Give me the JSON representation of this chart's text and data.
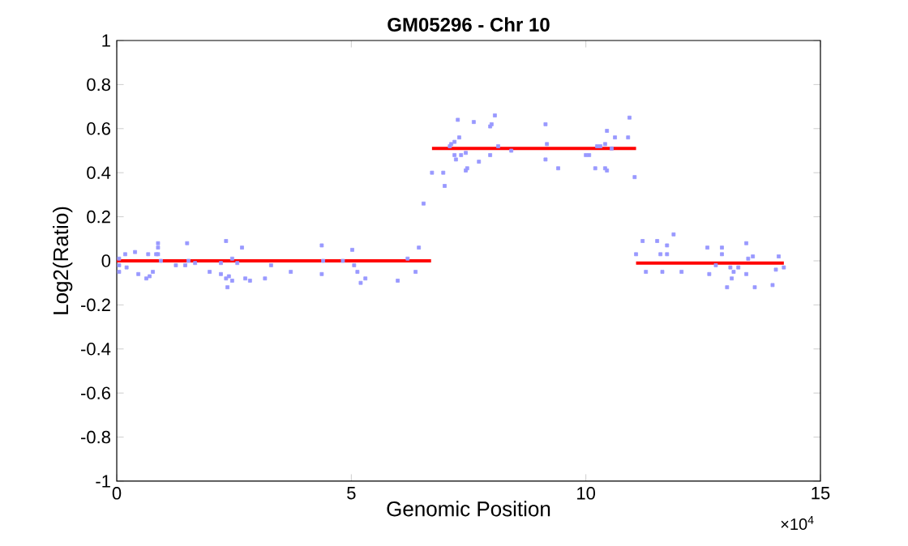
{
  "chart_data": {
    "type": "scatter",
    "title": "GM05296 - Chr 10",
    "xlabel": "Genomic Position",
    "ylabel": "Log2(Ratio)",
    "annotations": [
      "×10$^{4}$"
    ],
    "xlim": [
      0,
      15
    ],
    "xticks": [
      0,
      5,
      10,
      15
    ],
    "ylim": [
      -1,
      1
    ],
    "yticks": [
      -1,
      -0.8,
      -0.6,
      -0.4,
      -0.2,
      0,
      0.2,
      0.4,
      0.6,
      0.8,
      1
    ],
    "marker": "square",
    "series": [
      {
        "color": "#9999ff",
        "x": [
          0.05,
          0.05,
          0.05,
          0.18,
          0.21,
          0.39,
          0.46,
          0.63,
          0.67,
          0.7,
          0.77,
          0.84,
          0.88,
          0.88,
          0.88,
          0.94,
          1.26,
          1.46,
          1.5,
          1.53,
          1.67,
          1.98,
          2.22,
          2.22,
          2.33,
          2.33,
          2.36,
          2.39,
          2.46,
          2.46,
          2.57,
          2.67,
          2.74,
          2.84,
          3.16,
          3.29,
          3.71,
          4.37,
          4.37,
          4.4,
          4.82,
          5.02,
          5.06,
          5.13,
          5.2,
          5.3,
          5.99,
          6.2,
          6.37,
          6.44,
          6.54,
          6.72,
          6.96,
          6.99,
          7.1,
          7.13,
          7.2,
          7.2,
          7.23,
          7.27,
          7.3,
          7.34,
          7.44,
          7.44,
          7.47,
          7.61,
          7.72,
          7.96,
          7.99,
          7.96,
          8.06,
          8.13,
          8.41,
          9.14,
          9.17,
          9.14,
          9.41,
          10.0,
          10.07,
          10.2,
          10.24,
          10.31,
          10.41,
          10.45,
          10.41,
          10.45,
          10.55,
          10.62,
          10.9,
          10.93,
          11.04,
          11.07,
          11.21,
          11.28,
          11.52,
          11.59,
          11.63,
          11.73,
          11.73,
          11.87,
          12.04,
          12.59,
          12.63,
          12.77,
          12.9,
          12.9,
          13.01,
          13.08,
          13.11,
          13.15,
          13.25,
          13.42,
          13.46,
          13.42,
          13.56,
          13.6,
          13.98,
          14.05,
          14.11,
          14.22
        ],
        "values": [
          0.01,
          -0.02,
          -0.05,
          0.03,
          -0.03,
          0.04,
          -0.06,
          -0.08,
          0.03,
          -0.07,
          -0.05,
          0.03,
          0.08,
          0.06,
          0.03,
          0.0,
          -0.02,
          -0.02,
          0.08,
          0.0,
          -0.01,
          -0.05,
          -0.06,
          -0.01,
          0.09,
          -0.08,
          -0.12,
          -0.07,
          0.01,
          -0.09,
          -0.01,
          0.06,
          -0.08,
          -0.09,
          -0.08,
          -0.02,
          -0.05,
          0.07,
          -0.06,
          0.0,
          0.0,
          0.05,
          -0.02,
          -0.05,
          -0.1,
          -0.08,
          -0.09,
          0.01,
          -0.05,
          0.06,
          0.26,
          0.4,
          0.4,
          0.34,
          0.52,
          0.53,
          0.54,
          0.48,
          0.46,
          0.64,
          0.56,
          0.48,
          0.49,
          0.41,
          0.42,
          0.63,
          0.45,
          0.61,
          0.62,
          0.48,
          0.66,
          0.52,
          0.5,
          0.62,
          0.53,
          0.46,
          0.42,
          0.48,
          0.48,
          0.42,
          0.52,
          0.52,
          0.53,
          0.59,
          0.42,
          0.41,
          0.51,
          0.56,
          0.56,
          0.65,
          0.38,
          0.03,
          0.09,
          -0.05,
          0.09,
          0.03,
          -0.05,
          0.07,
          0.03,
          0.12,
          -0.05,
          0.06,
          -0.06,
          -0.02,
          0.06,
          0.03,
          -0.12,
          -0.03,
          -0.08,
          -0.05,
          -0.03,
          0.08,
          0.01,
          -0.06,
          0.02,
          -0.12,
          -0.11,
          -0.04,
          0.02,
          -0.03
        ]
      },
      {
        "type": "line",
        "color": "#ff0000",
        "marker": "none",
        "x": [
          0,
          6.7
        ],
        "values": [
          0,
          0
        ]
      },
      {
        "type": "line",
        "color": "#ff0000",
        "marker": "none",
        "x": [
          6.72,
          11.07
        ],
        "values": [
          0.51,
          0.51
        ]
      },
      {
        "type": "line",
        "color": "#ff0000",
        "marker": "none",
        "x": [
          11.07,
          14.22
        ],
        "values": [
          -0.01,
          -0.01
        ]
      }
    ]
  }
}
